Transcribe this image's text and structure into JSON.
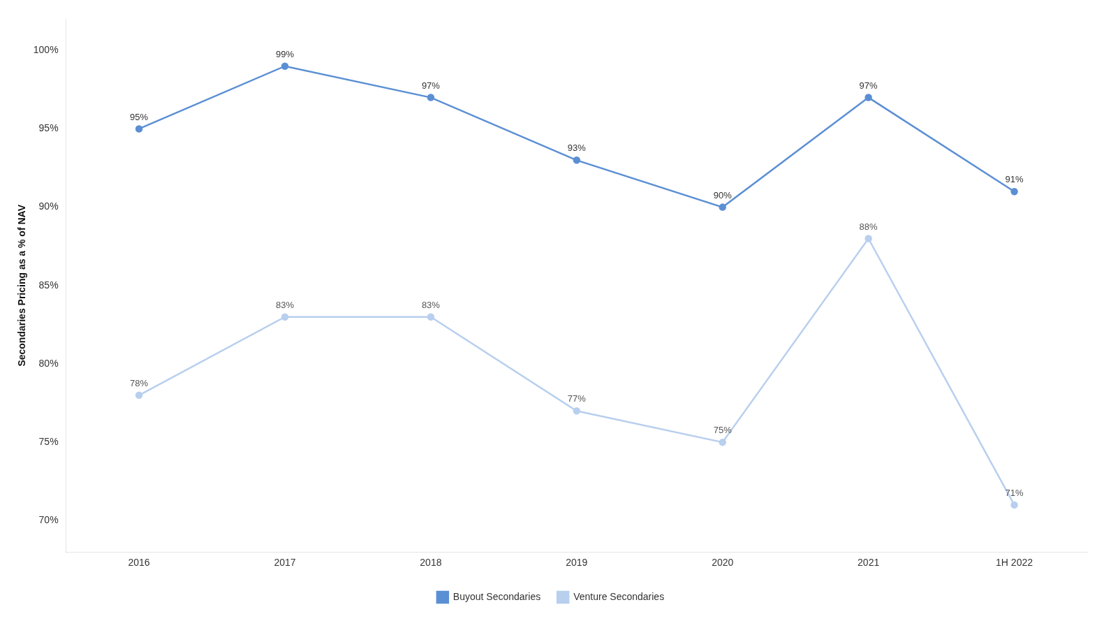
{
  "chart_data": {
    "type": "line",
    "categories": [
      "2016",
      "2017",
      "2018",
      "2019",
      "2020",
      "2021",
      "1H 2022"
    ],
    "series": [
      {
        "name": "Buyout Secondaries",
        "color": "#5B8FD4",
        "values": [
          95,
          99,
          97,
          93,
          90,
          97,
          91
        ],
        "value_labels": [
          "95%",
          "99%",
          "97%",
          "93%",
          "90%",
          "97%",
          "91%"
        ]
      },
      {
        "name": "Venture Secondaries",
        "color": "#B8CFEE",
        "values": [
          78,
          83,
          83,
          77,
          75,
          88,
          71
        ],
        "value_labels": [
          "78%",
          "83%",
          "83%",
          "77%",
          "75%",
          "88%",
          "71%"
        ]
      }
    ],
    "ylabel": "Secondaries Pricing as a % of NAV",
    "ylim": [
      68,
      102
    ],
    "yticks": [
      {
        "value": 70,
        "label": "70%"
      },
      {
        "value": 75,
        "label": "75%"
      },
      {
        "value": 80,
        "label": "80%"
      },
      {
        "value": 85,
        "label": "85%"
      },
      {
        "value": 90,
        "label": "90%"
      },
      {
        "value": 95,
        "label": "95%"
      },
      {
        "value": 100,
        "label": "100%"
      }
    ],
    "grid": false,
    "legend": "bottom",
    "data_labels": true,
    "marker": "circle"
  }
}
